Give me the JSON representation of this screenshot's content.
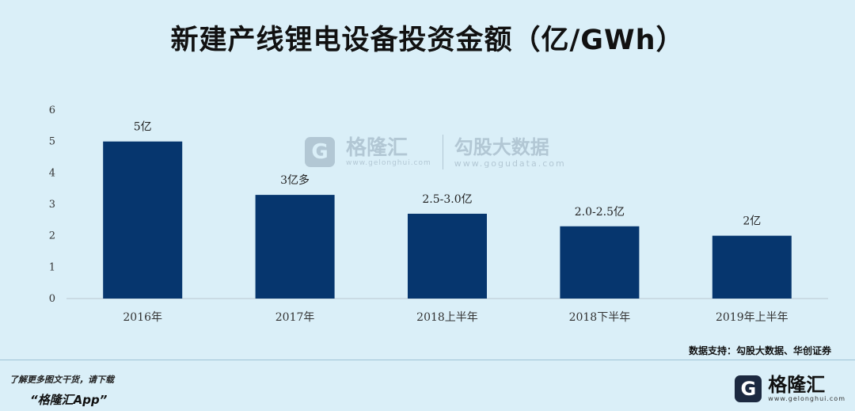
{
  "header": {
    "title": "新建产线锂电设备投资金额（亿/GWh）"
  },
  "chart_data": {
    "type": "bar",
    "title": "新建产线锂电设备投资金额（亿/GWh）",
    "categories": [
      "2016年",
      "2017年",
      "2018上半年",
      "2018下半年",
      "2019年上半年"
    ],
    "values": [
      5,
      3.3,
      2.7,
      2.3,
      2.0
    ],
    "data_labels": [
      "5亿",
      "3亿多",
      "2.5-3.0亿",
      "2.0-2.5亿",
      "2亿"
    ],
    "yticks": [
      "0",
      "1",
      "2",
      "3",
      "4",
      "5",
      "6"
    ],
    "ylim": [
      0,
      6
    ],
    "xlabel": "",
    "ylabel": "",
    "grid": false,
    "legend": "none",
    "bar_color": "#06366e"
  },
  "source": "数据支持：勾股大数据、华创证券",
  "watermark": {
    "brand": "格隆汇",
    "brand_url": "www.gelonghui.com",
    "brand2": "勾股大数据",
    "brand2_url": "www.gogudata.com",
    "icon_letter": "G"
  },
  "footer": {
    "note_line1": "了解更多图文干货，请下载",
    "note_line2": "“格隆汇App”"
  },
  "logo": {
    "icon_letter": "G",
    "text": "格隆汇",
    "sub": "www.gelonghui.com"
  }
}
